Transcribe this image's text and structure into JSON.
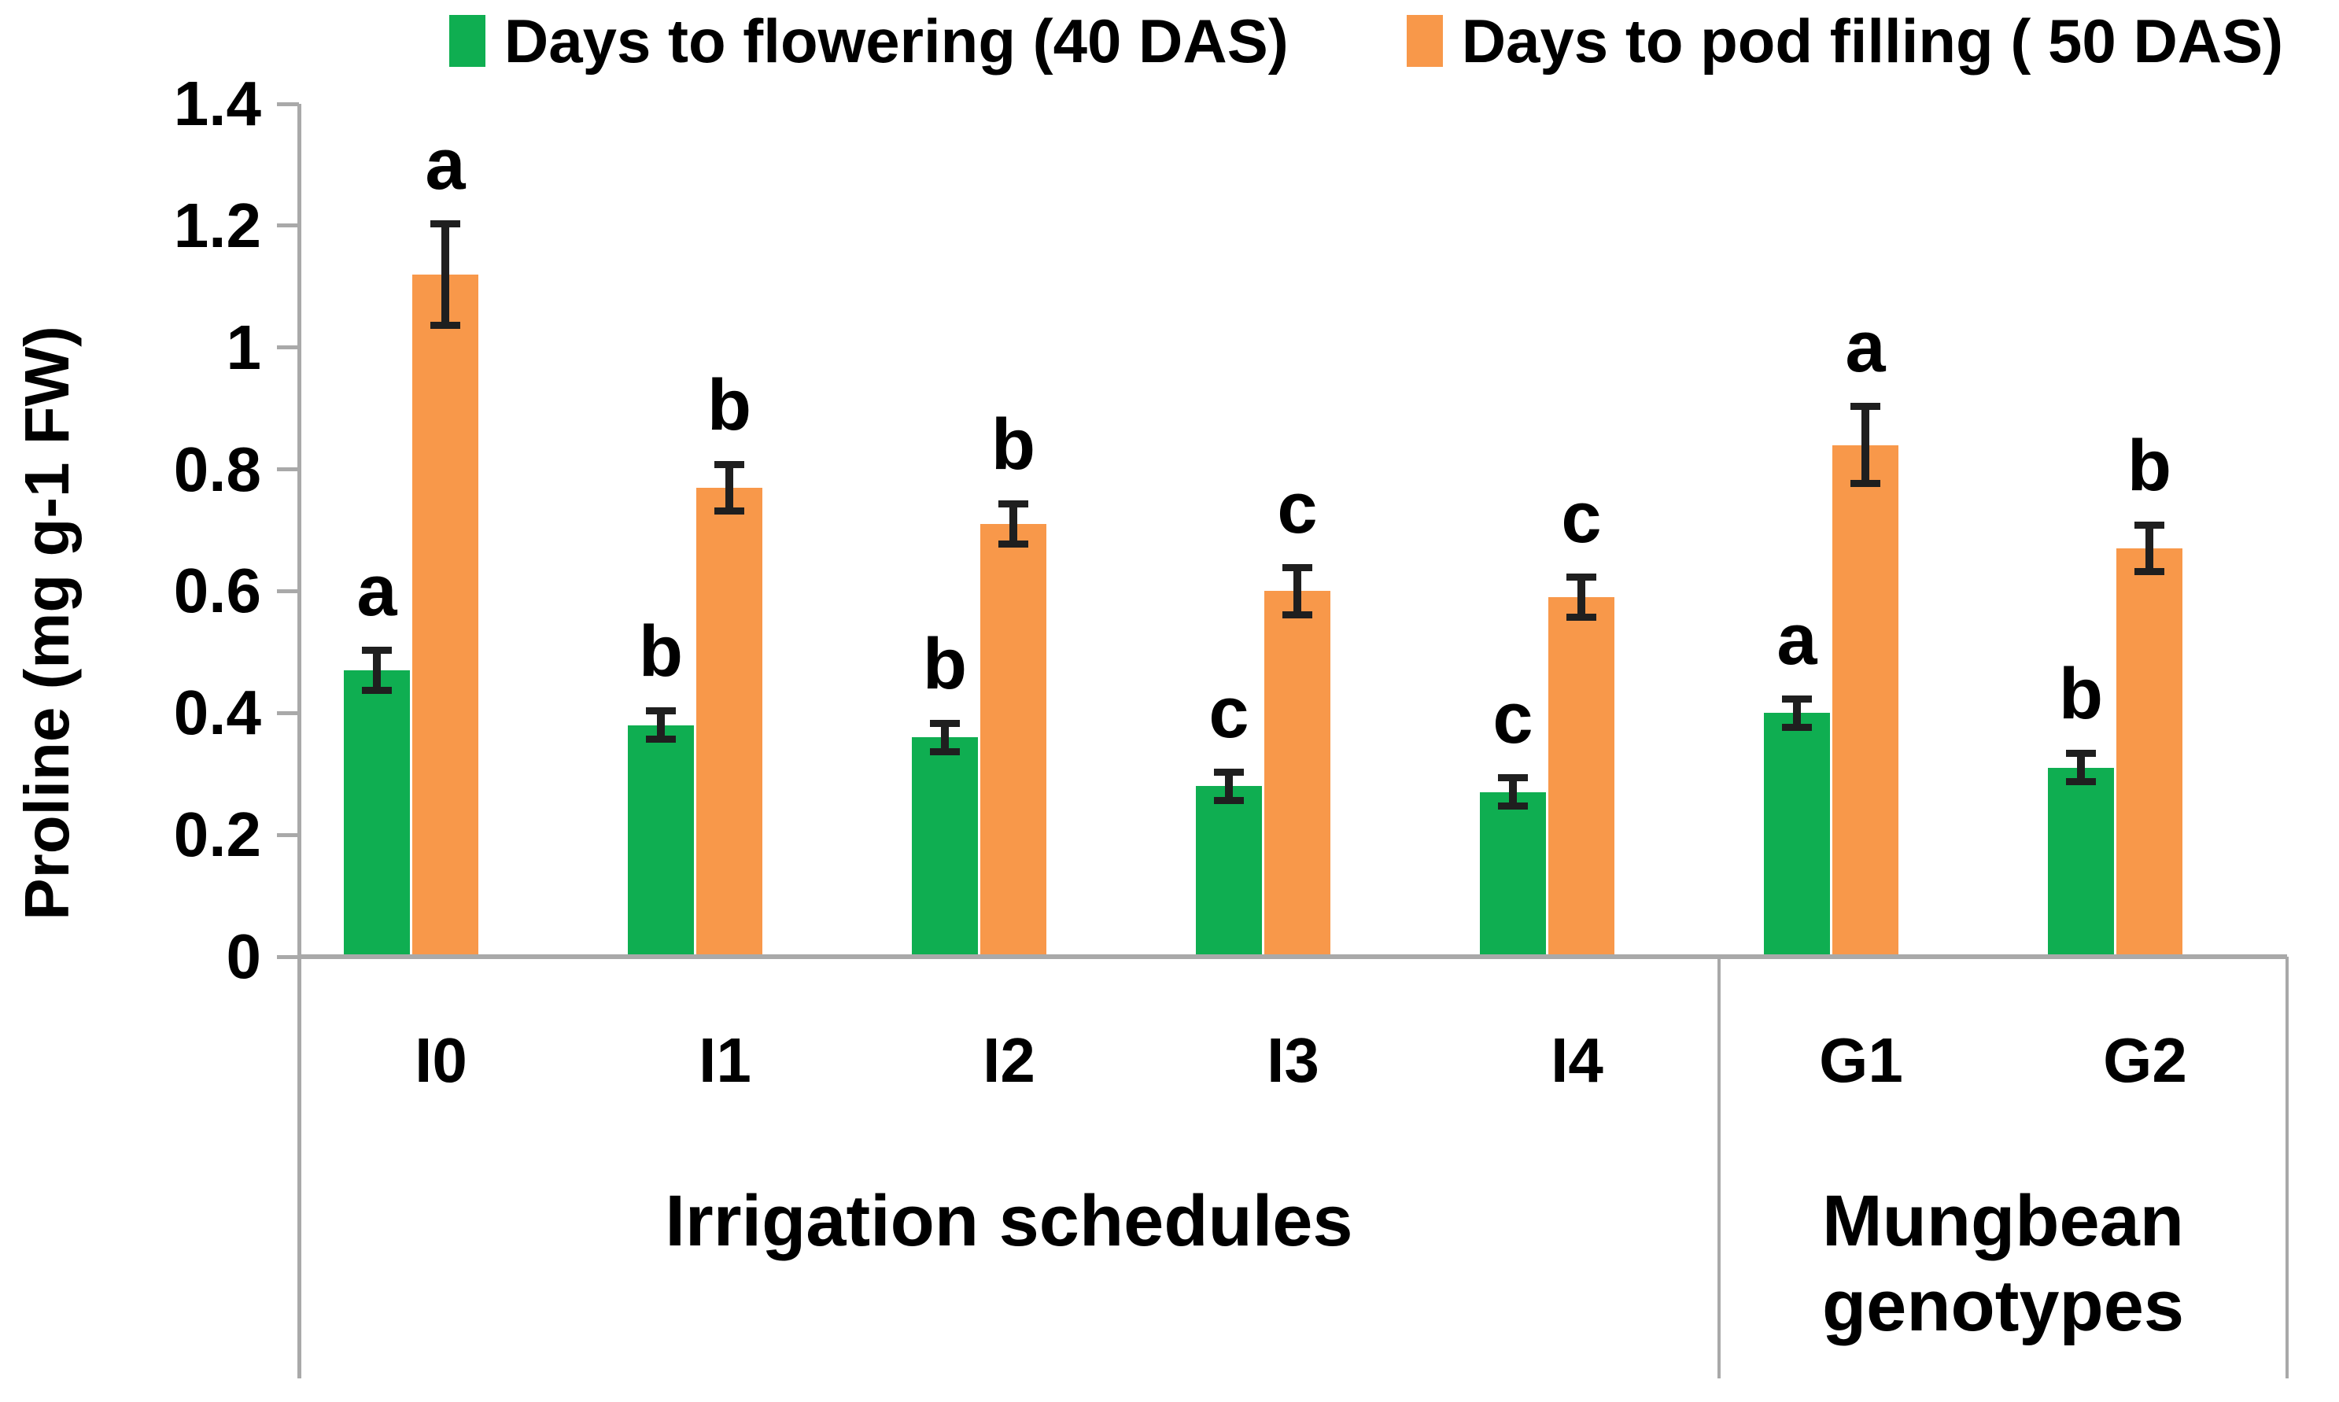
{
  "colors": {
    "background": "#FFFFFF",
    "axis_line": "#A9A9A9",
    "error_bar": "#1F1F1F",
    "text": "#000000",
    "series_green": "#0FAE51",
    "series_orange": "#F8984A"
  },
  "chart_data": {
    "type": "bar",
    "title": "",
    "xlabel": "",
    "ylabel": "Proline (mg g-1 FW)",
    "ylim": [
      0,
      1.4
    ],
    "ytick_step": 0.2,
    "yticks": [
      "0",
      "0.2",
      "0.4",
      "0.6",
      "0.8",
      "1",
      "1.2",
      "1.4"
    ],
    "grid": false,
    "legend_position": "top",
    "categories": [
      "I0",
      "I1",
      "I2",
      "I3",
      "I4",
      "G1",
      "G2"
    ],
    "category_groups": [
      {
        "label": "Irrigation schedules",
        "count": 5
      },
      {
        "label": "Mungbean genotypes",
        "count": 2
      }
    ],
    "series": [
      {
        "name": "Days to flowering (40 DAS)",
        "color": "#0FAE51",
        "values": [
          0.47,
          0.38,
          0.36,
          0.28,
          0.27,
          0.4,
          0.31
        ],
        "errors": [
          0.03,
          0.02,
          0.02,
          0.02,
          0.02,
          0.02,
          0.02
        ],
        "sig_letters": [
          "a",
          "b",
          "b",
          "c",
          "c",
          "a",
          "b"
        ]
      },
      {
        "name": "Days to pod filling ( 50 DAS)",
        "color": "#F8984A",
        "values": [
          1.12,
          0.77,
          0.71,
          0.6,
          0.59,
          0.84,
          0.67
        ],
        "errors": [
          0.08,
          0.035,
          0.03,
          0.035,
          0.03,
          0.06,
          0.035
        ],
        "sig_letters": [
          "a",
          "b",
          "b",
          "c",
          "c",
          "a",
          "b"
        ]
      }
    ]
  }
}
